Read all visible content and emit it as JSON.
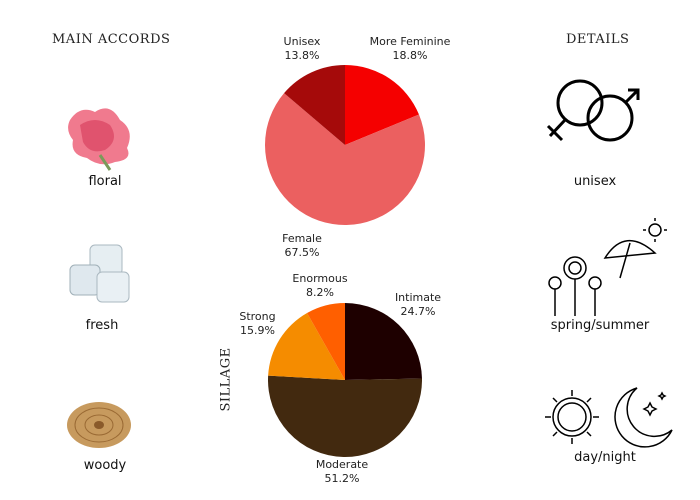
{
  "accords": {
    "title": "MAIN ACCORDS",
    "items": [
      {
        "label": "floral",
        "icon": "carnation-flower-image"
      },
      {
        "label": "fresh",
        "icon": "ice-cubes-image"
      },
      {
        "label": "woody",
        "icon": "wood-slice-image"
      }
    ]
  },
  "details": {
    "title": "DETAILS",
    "items": [
      {
        "label": "unisex",
        "icon": "gender-symbols-icon"
      },
      {
        "label": "spring/summer",
        "icon": "flowers-umbrella-icon"
      },
      {
        "label": "day/night",
        "icon": "sun-moon-icon"
      }
    ]
  },
  "chart_data": [
    {
      "type": "pie",
      "title": "",
      "slices": [
        {
          "label": "More Feminine",
          "value": 18.8,
          "pct": "18.8%",
          "color": "#f50000"
        },
        {
          "label": "Female",
          "value": 67.5,
          "pct": "67.5%",
          "color": "#eb6060"
        },
        {
          "label": "Unisex",
          "value": 13.8,
          "pct": "13.8%",
          "color": "#a50a0a"
        }
      ]
    },
    {
      "type": "pie",
      "title": "SILLAGE",
      "slices": [
        {
          "label": "Intimate",
          "value": 24.7,
          "pct": "24.7%",
          "color": "#1e0000"
        },
        {
          "label": "Moderate",
          "value": 51.2,
          "pct": "51.2%",
          "color": "#42290f"
        },
        {
          "label": "Strong",
          "value": 15.9,
          "pct": "15.9%",
          "color": "#f58c00"
        },
        {
          "label": "Enormous",
          "value": 8.2,
          "pct": "8.2%",
          "color": "#ff5f00"
        }
      ]
    }
  ]
}
